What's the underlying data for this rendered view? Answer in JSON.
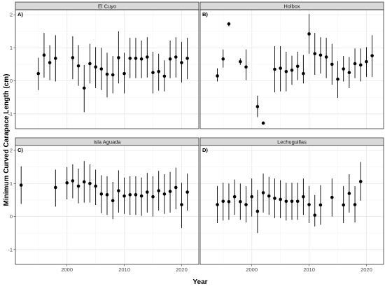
{
  "chart_data": {
    "type": "scatter",
    "error_bars": true,
    "xlabel": "Year",
    "ylabel": "Minimum Curved Carapace Length (cm)",
    "xlim": [
      1991,
      2023
    ],
    "ylim": [
      -1.45,
      2.15
    ],
    "x_ticks": [
      2000,
      2010,
      2020
    ],
    "y_ticks": [
      -1,
      0,
      1,
      2
    ],
    "grid": true,
    "colors": {
      "point": "#000000",
      "panel_border": "#333333",
      "strip_fill": "#d9d9d9",
      "grid_major": "#ebebeb",
      "grid_minor": "#f5f5f5"
    },
    "panels": [
      {
        "tag": "A)",
        "title": "El Cuyo",
        "points": [
          {
            "x": 1995,
            "y": 0.22,
            "lo": -0.28,
            "hi": 0.7
          },
          {
            "x": 1996,
            "y": 0.78,
            "lo": 0.1,
            "hi": 1.45
          },
          {
            "x": 1997,
            "y": 0.55,
            "lo": 0.02,
            "hi": 1.08
          },
          {
            "x": 1998,
            "y": 0.68,
            "lo": -0.02,
            "hi": 1.38
          },
          {
            "x": 2001,
            "y": 0.7,
            "lo": 0.05,
            "hi": 1.35
          },
          {
            "x": 2002,
            "y": 0.45,
            "lo": -0.15,
            "hi": 1.08
          },
          {
            "x": 2003,
            "y": -0.22,
            "lo": -0.95,
            "hi": 0.48
          },
          {
            "x": 2004,
            "y": 0.52,
            "lo": -0.08,
            "hi": 1.12
          },
          {
            "x": 2005,
            "y": 0.42,
            "lo": -0.22,
            "hi": 1.02
          },
          {
            "x": 2006,
            "y": 0.36,
            "lo": -0.28,
            "hi": 1.0
          },
          {
            "x": 2007,
            "y": 0.2,
            "lo": -0.5,
            "hi": 0.85
          },
          {
            "x": 2008,
            "y": 0.18,
            "lo": -0.38,
            "hi": 0.75
          },
          {
            "x": 2009,
            "y": 0.7,
            "lo": -0.08,
            "hi": 1.5
          },
          {
            "x": 2010,
            "y": 0.22,
            "lo": -0.38,
            "hi": 0.85
          },
          {
            "x": 2011,
            "y": 0.68,
            "lo": 0.08,
            "hi": 1.3
          },
          {
            "x": 2012,
            "y": 0.68,
            "lo": 0.08,
            "hi": 1.3
          },
          {
            "x": 2013,
            "y": 0.66,
            "lo": 0.08,
            "hi": 1.22
          },
          {
            "x": 2014,
            "y": 0.72,
            "lo": 0.1,
            "hi": 1.32
          },
          {
            "x": 2015,
            "y": 0.25,
            "lo": -0.38,
            "hi": 0.88
          },
          {
            "x": 2016,
            "y": 0.28,
            "lo": -0.3,
            "hi": 0.82
          },
          {
            "x": 2017,
            "y": 0.14,
            "lo": -0.32,
            "hi": 0.62
          },
          {
            "x": 2018,
            "y": 0.66,
            "lo": 0.08,
            "hi": 1.22
          },
          {
            "x": 2019,
            "y": 0.72,
            "lo": 0.1,
            "hi": 1.32
          },
          {
            "x": 2020,
            "y": 0.55,
            "lo": -0.05,
            "hi": 1.18
          },
          {
            "x": 2021,
            "y": 0.68,
            "lo": 0.05,
            "hi": 1.3
          }
        ]
      },
      {
        "tag": "B)",
        "title": "Holbox",
        "points": [
          {
            "x": 1994,
            "y": 0.15,
            "lo": -0.02,
            "hi": 0.38
          },
          {
            "x": 1995,
            "y": 0.66,
            "lo": 0.4,
            "hi": 0.95
          },
          {
            "x": 1996,
            "y": 1.72,
            "lo": 1.65,
            "hi": 1.78
          },
          {
            "x": 1998,
            "y": 0.58,
            "lo": 0.48,
            "hi": 0.68
          },
          {
            "x": 1999,
            "y": 0.42,
            "lo": 0.02,
            "hi": 0.95
          },
          {
            "x": 2001,
            "y": -0.78,
            "lo": -1.1,
            "hi": -0.45
          },
          {
            "x": 2002,
            "y": -1.28,
            "lo": -1.31,
            "hi": -1.25
          },
          {
            "x": 2004,
            "y": 0.35,
            "lo": -0.35,
            "hi": 1.05
          },
          {
            "x": 2005,
            "y": 0.38,
            "lo": -0.32,
            "hi": 1.05
          },
          {
            "x": 2006,
            "y": 0.28,
            "lo": -0.32,
            "hi": 0.88
          },
          {
            "x": 2007,
            "y": 0.32,
            "lo": -0.12,
            "hi": 0.76
          },
          {
            "x": 2008,
            "y": 0.44,
            "lo": 0.02,
            "hi": 0.88
          },
          {
            "x": 2009,
            "y": 0.22,
            "lo": -0.08,
            "hi": 0.78
          },
          {
            "x": 2010,
            "y": 1.42,
            "lo": 0.82,
            "hi": 2.02
          },
          {
            "x": 2011,
            "y": 0.82,
            "lo": 0.18,
            "hi": 1.45
          },
          {
            "x": 2012,
            "y": 0.78,
            "lo": 0.22,
            "hi": 1.32
          },
          {
            "x": 2013,
            "y": 0.72,
            "lo": 0.08,
            "hi": 1.3
          },
          {
            "x": 2014,
            "y": 0.5,
            "lo": -0.12,
            "hi": 1.12
          },
          {
            "x": 2015,
            "y": 0.05,
            "lo": -0.52,
            "hi": 0.6
          },
          {
            "x": 2016,
            "y": 0.36,
            "lo": -0.02,
            "hi": 0.75
          },
          {
            "x": 2017,
            "y": 0.25,
            "lo": -0.22,
            "hi": 0.72
          },
          {
            "x": 2018,
            "y": 0.52,
            "lo": 0.08,
            "hi": 0.98
          },
          {
            "x": 2019,
            "y": 0.48,
            "lo": -0.02,
            "hi": 0.98
          },
          {
            "x": 2020,
            "y": 0.58,
            "lo": 0.12,
            "hi": 1.02
          },
          {
            "x": 2021,
            "y": 0.76,
            "lo": 0.12,
            "hi": 1.38
          }
        ]
      },
      {
        "tag": "C)",
        "title": "Isla Aguada",
        "points": [
          {
            "x": 1992,
            "y": 0.95,
            "lo": 0.38,
            "hi": 1.52
          },
          {
            "x": 1998,
            "y": 0.88,
            "lo": 0.3,
            "hi": 1.42
          },
          {
            "x": 2000,
            "y": 1.02,
            "lo": 0.52,
            "hi": 1.5
          },
          {
            "x": 2001,
            "y": 1.08,
            "lo": 0.55,
            "hi": 1.58
          },
          {
            "x": 2002,
            "y": 0.92,
            "lo": 0.4,
            "hi": 1.45
          },
          {
            "x": 2003,
            "y": 1.05,
            "lo": 0.42,
            "hi": 1.68
          },
          {
            "x": 2004,
            "y": 1.0,
            "lo": 0.42,
            "hi": 1.58
          },
          {
            "x": 2005,
            "y": 0.92,
            "lo": 0.35,
            "hi": 1.42
          },
          {
            "x": 2006,
            "y": 0.68,
            "lo": 0.1,
            "hi": 1.25
          },
          {
            "x": 2007,
            "y": 0.66,
            "lo": 0.05,
            "hi": 1.22
          },
          {
            "x": 2008,
            "y": 0.48,
            "lo": -0.08,
            "hi": 1.05
          },
          {
            "x": 2009,
            "y": 0.78,
            "lo": 0.12,
            "hi": 1.4
          },
          {
            "x": 2010,
            "y": 0.62,
            "lo": 0.08,
            "hi": 1.18
          },
          {
            "x": 2011,
            "y": 0.66,
            "lo": 0.05,
            "hi": 1.22
          },
          {
            "x": 2012,
            "y": 0.66,
            "lo": 0.05,
            "hi": 1.22
          },
          {
            "x": 2013,
            "y": 0.62,
            "lo": 0.02,
            "hi": 1.18
          },
          {
            "x": 2014,
            "y": 0.74,
            "lo": 0.12,
            "hi": 1.32
          },
          {
            "x": 2015,
            "y": 0.6,
            "lo": 0.0,
            "hi": 1.22
          },
          {
            "x": 2016,
            "y": 0.78,
            "lo": 0.18,
            "hi": 1.38
          },
          {
            "x": 2017,
            "y": 0.68,
            "lo": 0.08,
            "hi": 1.28
          },
          {
            "x": 2018,
            "y": 0.76,
            "lo": 0.12,
            "hi": 1.35
          },
          {
            "x": 2019,
            "y": 0.88,
            "lo": 0.22,
            "hi": 1.48
          },
          {
            "x": 2020,
            "y": 0.36,
            "lo": -0.35,
            "hi": 1.02
          },
          {
            "x": 2021,
            "y": 0.74,
            "lo": 0.18,
            "hi": 1.3
          }
        ]
      },
      {
        "tag": "D)",
        "title": "Lechuguillas",
        "points": [
          {
            "x": 1994,
            "y": 0.36,
            "lo": -0.2,
            "hi": 0.92
          },
          {
            "x": 1995,
            "y": 0.46,
            "lo": -0.12,
            "hi": 1.02
          },
          {
            "x": 1996,
            "y": 0.45,
            "lo": -0.1,
            "hi": 1.0
          },
          {
            "x": 1997,
            "y": 0.6,
            "lo": 0.05,
            "hi": 1.12
          },
          {
            "x": 1998,
            "y": 0.45,
            "lo": -0.1,
            "hi": 1.0
          },
          {
            "x": 1999,
            "y": 0.36,
            "lo": -0.18,
            "hi": 0.92
          },
          {
            "x": 2000,
            "y": 0.6,
            "lo": 0.0,
            "hi": 1.15
          },
          {
            "x": 2001,
            "y": 0.16,
            "lo": -0.5,
            "hi": 0.8
          },
          {
            "x": 2002,
            "y": 0.72,
            "lo": 0.12,
            "hi": 1.3
          },
          {
            "x": 2003,
            "y": 0.62,
            "lo": 0.05,
            "hi": 1.2
          },
          {
            "x": 2004,
            "y": 0.55,
            "lo": -0.05,
            "hi": 1.15
          },
          {
            "x": 2005,
            "y": 0.52,
            "lo": -0.05,
            "hi": 1.1
          },
          {
            "x": 2006,
            "y": 0.46,
            "lo": -0.12,
            "hi": 1.02
          },
          {
            "x": 2007,
            "y": 0.46,
            "lo": -0.1,
            "hi": 1.02
          },
          {
            "x": 2008,
            "y": 0.46,
            "lo": -0.1,
            "hi": 1.02
          },
          {
            "x": 2009,
            "y": 0.6,
            "lo": 0.05,
            "hi": 1.15
          },
          {
            "x": 2010,
            "y": 0.36,
            "lo": -0.2,
            "hi": 0.92
          },
          {
            "x": 2011,
            "y": 0.04,
            "lo": -0.3,
            "hi": 0.65
          },
          {
            "x": 2012,
            "y": 0.35,
            "lo": -0.25,
            "hi": 0.95
          },
          {
            "x": 2014,
            "y": 0.58,
            "lo": 0.0,
            "hi": 1.15
          },
          {
            "x": 2016,
            "y": 0.35,
            "lo": -0.2,
            "hi": 0.92
          },
          {
            "x": 2017,
            "y": 0.7,
            "lo": 0.12,
            "hi": 1.28
          },
          {
            "x": 2018,
            "y": 0.36,
            "lo": -0.18,
            "hi": 0.92
          },
          {
            "x": 2019,
            "y": 1.06,
            "lo": 0.48,
            "hi": 1.65
          }
        ]
      }
    ]
  }
}
